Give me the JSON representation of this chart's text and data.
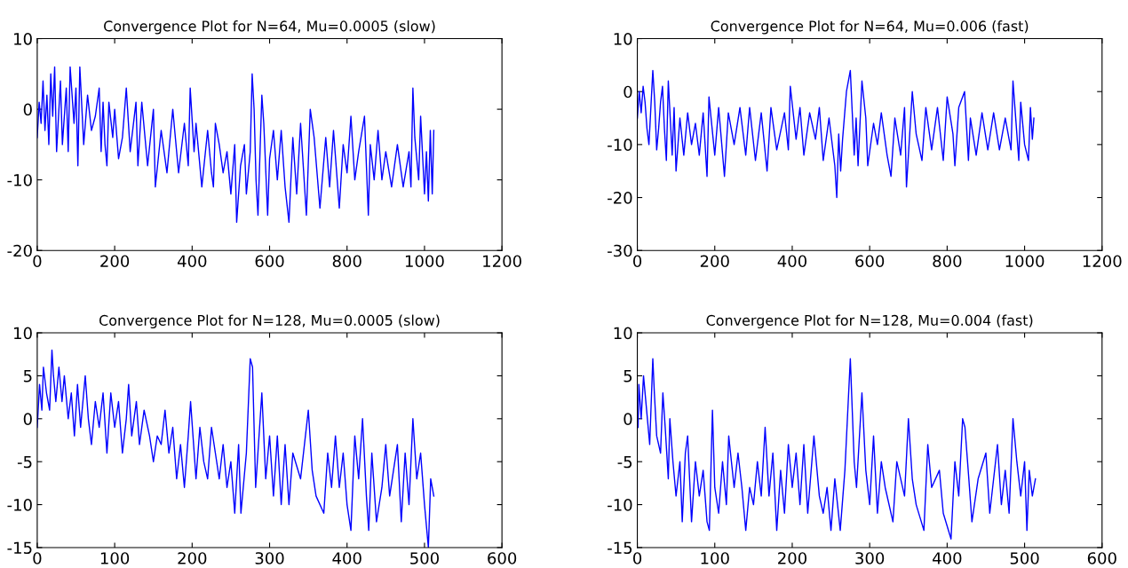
{
  "chart_data": [
    {
      "type": "line",
      "title": "Convergence Plot for N=64, Mu=0.0005 (slow)",
      "xlim": [
        0,
        1200
      ],
      "ylim": [
        -20,
        10
      ],
      "xticks": [
        0,
        200,
        400,
        600,
        800,
        1000,
        1200
      ],
      "yticks": [
        -20,
        -10,
        0,
        10
      ],
      "grid": false,
      "series": [
        {
          "color": "#0000ff",
          "x": [
            0,
            5,
            10,
            15,
            20,
            25,
            30,
            35,
            40,
            45,
            50,
            60,
            65,
            75,
            80,
            85,
            95,
            100,
            105,
            110,
            120,
            130,
            140,
            150,
            160,
            165,
            170,
            175,
            180,
            185,
            195,
            200,
            210,
            220,
            230,
            240,
            255,
            260,
            270,
            285,
            300,
            305,
            320,
            335,
            350,
            365,
            380,
            390,
            395,
            405,
            410,
            425,
            440,
            450,
            455,
            460,
            470,
            480,
            490,
            500,
            510,
            515,
            525,
            535,
            540,
            550,
            555,
            560,
            565,
            570,
            580,
            585,
            595,
            600,
            610,
            620,
            630,
            640,
            650,
            660,
            670,
            680,
            695,
            705,
            715,
            730,
            745,
            755,
            765,
            780,
            790,
            800,
            810,
            820,
            830,
            845,
            855,
            860,
            870,
            880,
            890,
            900,
            915,
            930,
            945,
            960,
            965,
            970,
            975,
            985,
            990,
            1000,
            1005,
            1010,
            1015,
            1020,
            1024
          ],
          "values": [
            -4,
            1,
            -2,
            4,
            -3,
            2,
            -5,
            5,
            -1,
            6,
            -6,
            4,
            -5,
            3,
            -6,
            6,
            -2,
            3,
            -8,
            6,
            -5,
            2,
            -3,
            -1,
            3,
            -6,
            1,
            -5,
            -8,
            1,
            -4,
            0,
            -7,
            -4,
            3,
            -6,
            1,
            -8,
            1,
            -8,
            0,
            -11,
            -3,
            -9,
            0,
            -9,
            -2,
            -8,
            3,
            -6,
            -2,
            -11,
            -3,
            -9,
            -11,
            -2,
            -5,
            -9,
            -6,
            -12,
            -5,
            -16,
            -8,
            -5,
            -12,
            -6,
            5,
            0,
            -10,
            -15,
            2,
            -2,
            -15,
            -7,
            -3,
            -10,
            -3,
            -11,
            -16,
            -4,
            -12,
            -2,
            -15,
            0,
            -4,
            -14,
            -4,
            -11,
            -3,
            -14,
            -5,
            -9,
            -1,
            -10,
            -6,
            -1,
            -15,
            -5,
            -10,
            -3,
            -10,
            -6,
            -11,
            -5,
            -11,
            -6,
            -11,
            3,
            -4,
            -10,
            -1,
            -12,
            -6,
            -13,
            -3,
            -12,
            -3
          ]
        }
      ]
    },
    {
      "type": "line",
      "title": "Convergence Plot for N=64, Mu=0.006 (fast)",
      "xlim": [
        0,
        1200
      ],
      "ylim": [
        -30,
        10
      ],
      "xticks": [
        0,
        200,
        400,
        600,
        800,
        1000,
        1200
      ],
      "yticks": [
        -30,
        -20,
        -10,
        0,
        10
      ],
      "grid": false,
      "series": [
        {
          "color": "#0000ff",
          "x": [
            0,
            5,
            10,
            15,
            20,
            25,
            30,
            35,
            40,
            45,
            50,
            55,
            60,
            65,
            70,
            75,
            80,
            90,
            95,
            100,
            110,
            120,
            130,
            140,
            150,
            160,
            170,
            180,
            185,
            200,
            210,
            225,
            235,
            250,
            265,
            280,
            290,
            305,
            320,
            335,
            345,
            360,
            380,
            390,
            395,
            410,
            420,
            430,
            445,
            460,
            470,
            480,
            495,
            510,
            515,
            520,
            525,
            530,
            540,
            550,
            555,
            560,
            565,
            570,
            580,
            590,
            595,
            610,
            620,
            630,
            645,
            655,
            665,
            680,
            690,
            695,
            710,
            720,
            735,
            745,
            760,
            775,
            790,
            800,
            815,
            820,
            830,
            845,
            855,
            860,
            875,
            890,
            905,
            920,
            935,
            950,
            965,
            970,
            975,
            985,
            990,
            1000,
            1010,
            1015,
            1020,
            1024
          ],
          "values": [
            -5,
            0,
            -4,
            1,
            -2,
            -7,
            -10,
            -3,
            4,
            -2,
            -11,
            -7,
            -2,
            1,
            -7,
            -13,
            2,
            -12,
            -3,
            -15,
            -5,
            -12,
            -4,
            -10,
            -6,
            -12,
            -4,
            -16,
            -1,
            -12,
            -3,
            -16,
            -4,
            -10,
            -3,
            -12,
            -3,
            -13,
            -4,
            -15,
            -3,
            -11,
            -4,
            -11,
            1,
            -9,
            -3,
            -12,
            -4,
            -9,
            -3,
            -13,
            -5,
            -14,
            -20,
            -8,
            -15,
            -9,
            0,
            4,
            -4,
            -12,
            -5,
            -14,
            2,
            -5,
            -14,
            -6,
            -10,
            -4,
            -12,
            -16,
            -5,
            -12,
            -3,
            -18,
            0,
            -8,
            -13,
            -3,
            -11,
            -3,
            -13,
            -1,
            -8,
            -14,
            -3,
            0,
            -13,
            -5,
            -12,
            -4,
            -11,
            -4,
            -11,
            -5,
            -11,
            2,
            -3,
            -13,
            -2,
            -10,
            -13,
            -3,
            -9,
            -5
          ]
        }
      ]
    },
    {
      "type": "line",
      "title": "Convergence Plot for N=128, Mu=0.0005 (slow)",
      "xlim": [
        0,
        600
      ],
      "ylim": [
        -15,
        10
      ],
      "xticks": [
        0,
        100,
        200,
        300,
        400,
        500,
        600
      ],
      "yticks": [
        -15,
        -10,
        -5,
        0,
        5,
        10
      ],
      "grid": false,
      "series": [
        {
          "color": "#0000ff",
          "x": [
            0,
            3,
            6,
            8,
            12,
            16,
            19,
            21,
            24,
            28,
            32,
            35,
            40,
            44,
            48,
            52,
            56,
            62,
            66,
            70,
            75,
            80,
            85,
            90,
            95,
            100,
            105,
            110,
            115,
            118,
            122,
            128,
            132,
            138,
            145,
            150,
            155,
            160,
            165,
            170,
            175,
            180,
            185,
            190,
            195,
            198,
            205,
            210,
            215,
            220,
            225,
            230,
            235,
            240,
            245,
            250,
            255,
            260,
            263,
            270,
            275,
            278,
            282,
            290,
            295,
            300,
            305,
            310,
            315,
            320,
            325,
            330,
            340,
            350,
            355,
            360,
            370,
            375,
            380,
            385,
            390,
            395,
            400,
            405,
            410,
            415,
            420,
            425,
            428,
            432,
            438,
            445,
            450,
            455,
            460,
            465,
            470,
            475,
            480,
            485,
            490,
            495,
            500,
            505,
            508,
            512
          ],
          "values": [
            -1,
            4,
            1,
            6,
            3,
            1,
            8,
            5,
            2,
            6,
            2,
            5,
            0,
            3,
            -2,
            4,
            -1,
            5,
            0,
            -3,
            2,
            -1,
            3,
            -4,
            3,
            -1,
            2,
            -4,
            0,
            4,
            -2,
            2,
            -3,
            1,
            -2,
            -5,
            -2,
            -3,
            1,
            -4,
            -1,
            -7,
            -3,
            -8,
            -2,
            2,
            -7,
            -1,
            -5,
            -7,
            -1,
            -4,
            -7,
            -3,
            -8,
            -5,
            -11,
            -3,
            -11,
            -4,
            7,
            6,
            -8,
            3,
            -7,
            -2,
            -9,
            -2,
            -10,
            -3,
            -10,
            -4,
            -7,
            1,
            -6,
            -9,
            -11,
            -4,
            -8,
            -2,
            -8,
            -4,
            -10,
            -13,
            -2,
            -7,
            0,
            -9,
            -13,
            -4,
            -12,
            -8,
            -3,
            -9,
            -6,
            -3,
            -12,
            -4,
            -10,
            0,
            -7,
            -4,
            -10,
            -15,
            -7,
            -9
          ]
        }
      ]
    },
    {
      "type": "line",
      "title": "Convergence Plot for N=128, Mu=0.004 (fast)",
      "xlim": [
        0,
        600
      ],
      "ylim": [
        -15,
        10
      ],
      "xticks": [
        0,
        100,
        200,
        300,
        400,
        500,
        600
      ],
      "yticks": [
        -15,
        -10,
        -5,
        0,
        5,
        10
      ],
      "grid": false,
      "series": [
        {
          "color": "#0000ff",
          "x": [
            1,
            2,
            5,
            8,
            12,
            16,
            20,
            22,
            25,
            30,
            33,
            36,
            40,
            42,
            46,
            50,
            55,
            58,
            62,
            65,
            70,
            75,
            80,
            85,
            90,
            93,
            97,
            100,
            105,
            110,
            115,
            118,
            125,
            130,
            135,
            140,
            145,
            150,
            155,
            160,
            165,
            170,
            175,
            180,
            185,
            190,
            195,
            200,
            205,
            210,
            215,
            220,
            228,
            235,
            240,
            245,
            250,
            255,
            262,
            268,
            275,
            280,
            283,
            290,
            295,
            300,
            305,
            310,
            315,
            320,
            330,
            335,
            345,
            350,
            355,
            360,
            370,
            375,
            380,
            390,
            395,
            405,
            410,
            415,
            420,
            423,
            428,
            432,
            440,
            450,
            455,
            465,
            470,
            475,
            480,
            485,
            490,
            495,
            500,
            503,
            506,
            510,
            514
          ],
          "values": [
            -1,
            4,
            0,
            5,
            1,
            -3,
            7,
            3,
            -2,
            -4,
            3,
            -1,
            -7,
            0,
            -5,
            -9,
            -5,
            -12,
            -4,
            -2,
            -12,
            -5,
            -9,
            -6,
            -12,
            -13,
            1,
            -8,
            -11,
            -5,
            -10,
            -2,
            -8,
            -4,
            -8,
            -13,
            -8,
            -10,
            -5,
            -9,
            -1,
            -9,
            -4,
            -13,
            -6,
            -11,
            -3,
            -8,
            -4,
            -10,
            -3,
            -11,
            -2,
            -9,
            -11,
            -8,
            -13,
            -7,
            -13,
            -6,
            7,
            -5,
            -8,
            3,
            -6,
            -10,
            -2,
            -11,
            -5,
            -8,
            -12,
            -5,
            -9,
            0,
            -7,
            -10,
            -13,
            -3,
            -8,
            -6,
            -11,
            -14,
            -5,
            -9,
            0,
            -1,
            -7,
            -12,
            -7,
            -4,
            -11,
            -3,
            -10,
            -6,
            -11,
            0,
            -5,
            -9,
            -5,
            -13,
            -6,
            -9,
            -7
          ]
        }
      ]
    }
  ]
}
